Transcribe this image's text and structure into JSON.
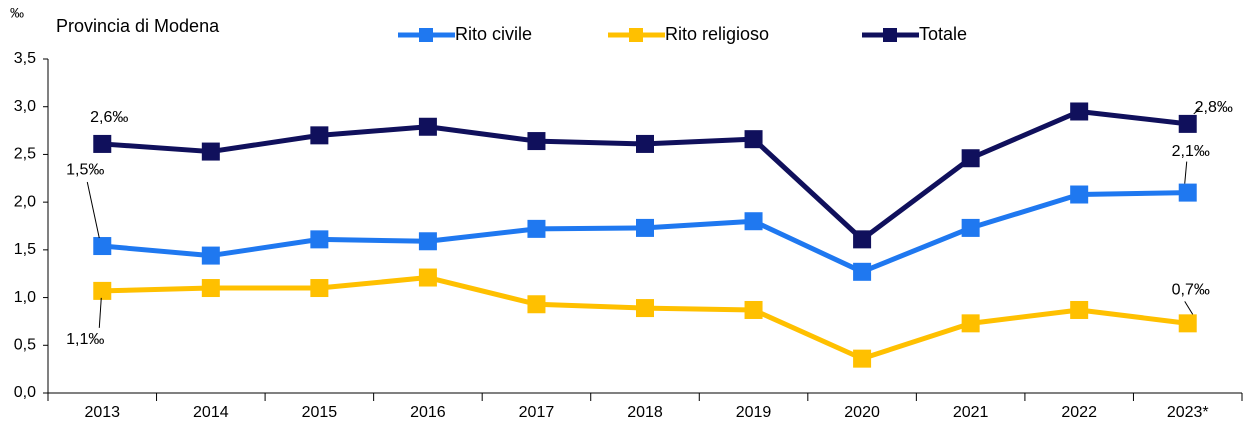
{
  "chart_data": {
    "type": "line",
    "title": "Provincia di Modena",
    "ylabel": "‰",
    "categories": [
      "2013",
      "2014",
      "2015",
      "2016",
      "2017",
      "2018",
      "2019",
      "2020",
      "2021",
      "2022",
      "2023*"
    ],
    "series": [
      {
        "name": "Rito civile",
        "color": "#1f78f0",
        "values": [
          1.54,
          1.44,
          1.61,
          1.59,
          1.72,
          1.73,
          1.8,
          1.27,
          1.73,
          2.08,
          2.1
        ],
        "value_labels": [
          "1,5‰",
          null,
          null,
          null,
          null,
          null,
          null,
          null,
          null,
          null,
          "2,1‰"
        ]
      },
      {
        "name": "Rito religioso",
        "color": "#ffc000",
        "values": [
          1.07,
          1.1,
          1.1,
          1.21,
          0.93,
          0.89,
          0.87,
          0.36,
          0.73,
          0.87,
          0.73
        ],
        "value_labels": [
          "1,1‰",
          null,
          null,
          null,
          null,
          null,
          null,
          null,
          null,
          null,
          "0,7‰"
        ]
      },
      {
        "name": "Totale",
        "color": "#10105c",
        "values": [
          2.61,
          2.53,
          2.7,
          2.79,
          2.64,
          2.61,
          2.66,
          1.61,
          2.46,
          2.95,
          2.82
        ],
        "value_labels": [
          "2,6‰",
          null,
          null,
          null,
          null,
          null,
          null,
          null,
          null,
          null,
          "2,8‰"
        ]
      }
    ],
    "ylim": [
      0,
      3.5
    ],
    "yticks": [
      {
        "value": 0,
        "label": "0,0"
      },
      {
        "value": 0.5,
        "label": "0,5"
      },
      {
        "value": 1,
        "label": "1,0"
      },
      {
        "value": 1.5,
        "label": "1,5"
      },
      {
        "value": 2,
        "label": "2,0"
      },
      {
        "value": 2.5,
        "label": "2,5"
      },
      {
        "value": 3,
        "label": "3,0"
      },
      {
        "value": 3.5,
        "label": "3,5"
      }
    ],
    "grid": false,
    "legend": "top"
  }
}
